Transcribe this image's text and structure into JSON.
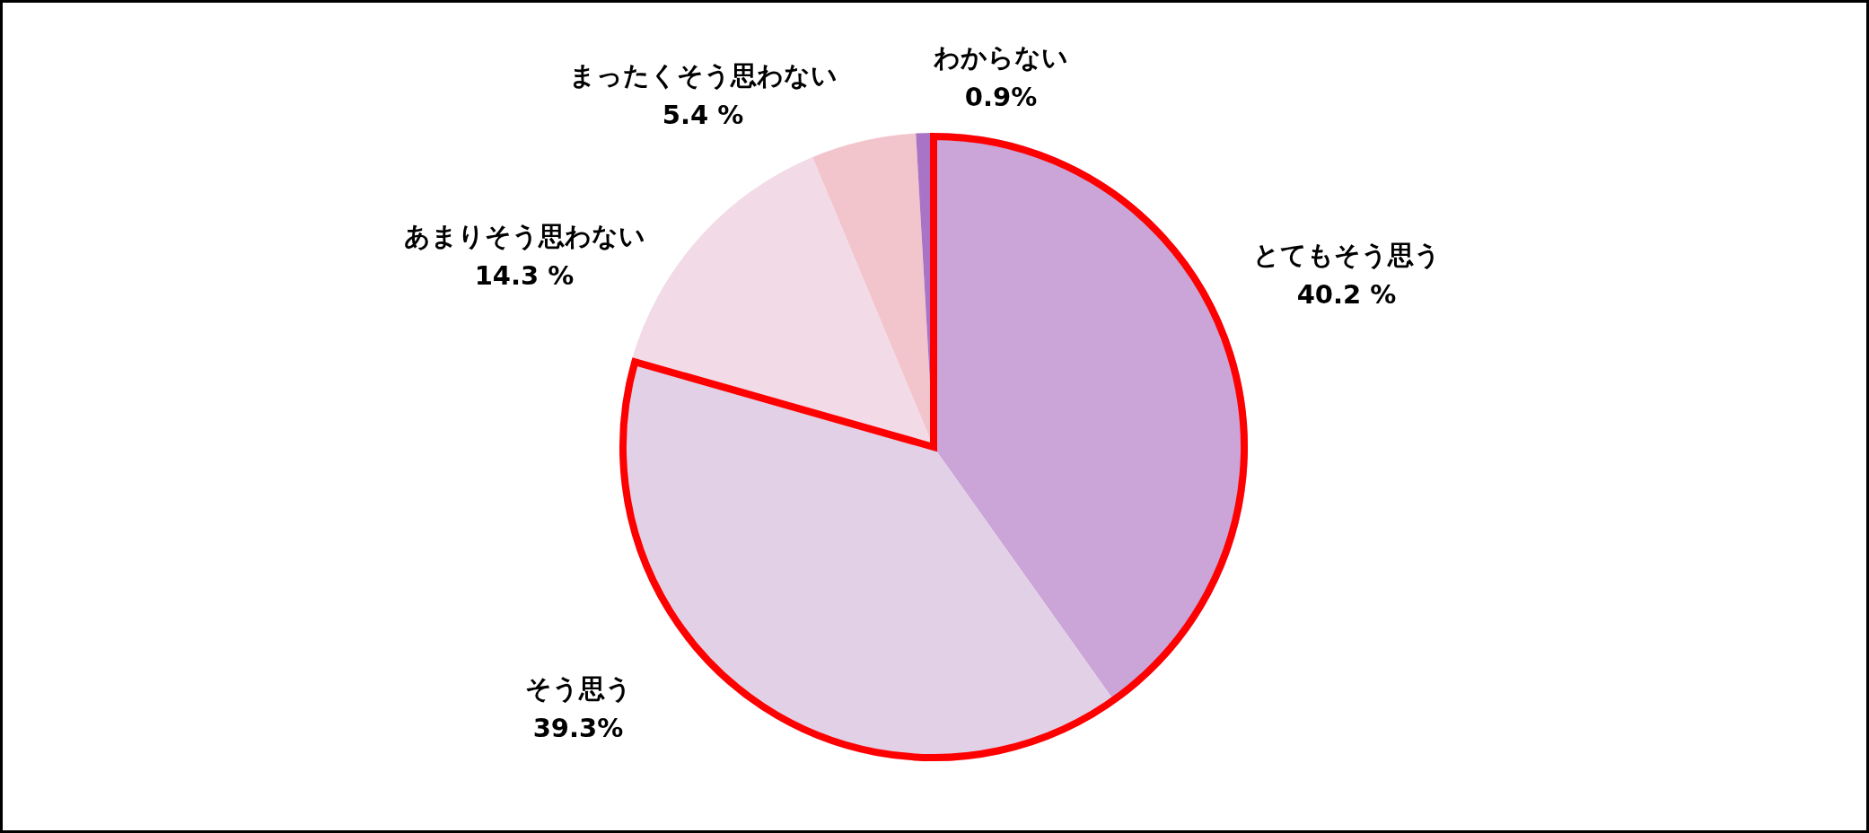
{
  "chart_data": {
    "type": "pie",
    "categories": [
      "とてもそう思う",
      "そう思う",
      "あまりそう思わない",
      "まったくそう思わない",
      "わからない"
    ],
    "values": [
      40.2,
      39.3,
      14.3,
      5.4,
      0.9
    ],
    "value_labels": [
      "40.2 %",
      "39.3%",
      "14.3 %",
      "5.4 %",
      "0.9%"
    ],
    "colors": [
      "#cba4d8",
      "#e2d0e6",
      "#f2dae6",
      "#f2c4cb",
      "#a974c6"
    ]
  }
}
